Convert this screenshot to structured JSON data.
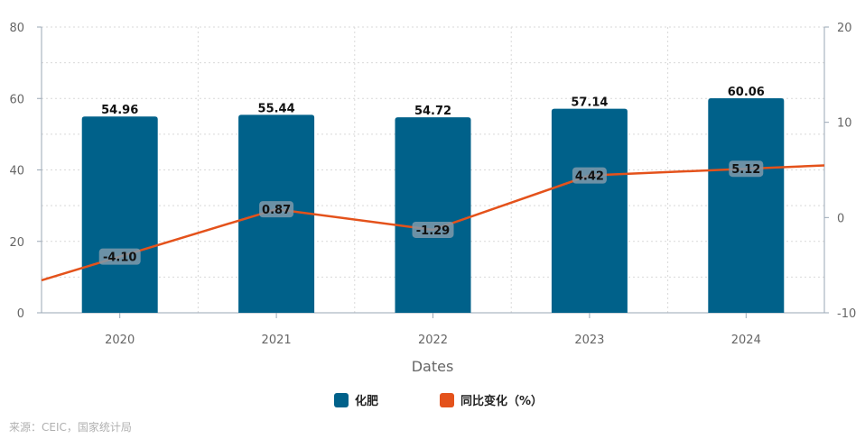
{
  "chart_data": {
    "type": "bar",
    "categories": [
      "2020",
      "2021",
      "2022",
      "2023",
      "2024"
    ],
    "series": [
      {
        "name": "化肥",
        "type": "bar",
        "axis": "left",
        "color": "#00618A",
        "values": [
          54.96,
          55.44,
          54.72,
          57.14,
          60.06
        ],
        "labels": [
          "54.96",
          "55.44",
          "54.72",
          "57.14",
          "60.06"
        ]
      },
      {
        "name": "同比变化（%）",
        "type": "line",
        "axis": "right",
        "color": "#E4521B",
        "values": [
          -4.1,
          0.87,
          -1.29,
          4.42,
          5.12
        ],
        "labels": [
          "-4.10",
          "0.87",
          "-1.29",
          "4.42",
          "5.12"
        ],
        "extends_past_edges": true
      }
    ],
    "xlabel": "Dates",
    "ylabel": "",
    "ylim": [
      0,
      80
    ],
    "y2lim": [
      -10,
      20
    ],
    "yticks": [
      "0",
      "20",
      "40",
      "60",
      "80"
    ],
    "y2ticks": [
      "-10",
      "0",
      "10",
      "20"
    ],
    "grid": true,
    "legend_position": "bottom-center"
  },
  "source_text": "来源：CEIC，国家统计局"
}
